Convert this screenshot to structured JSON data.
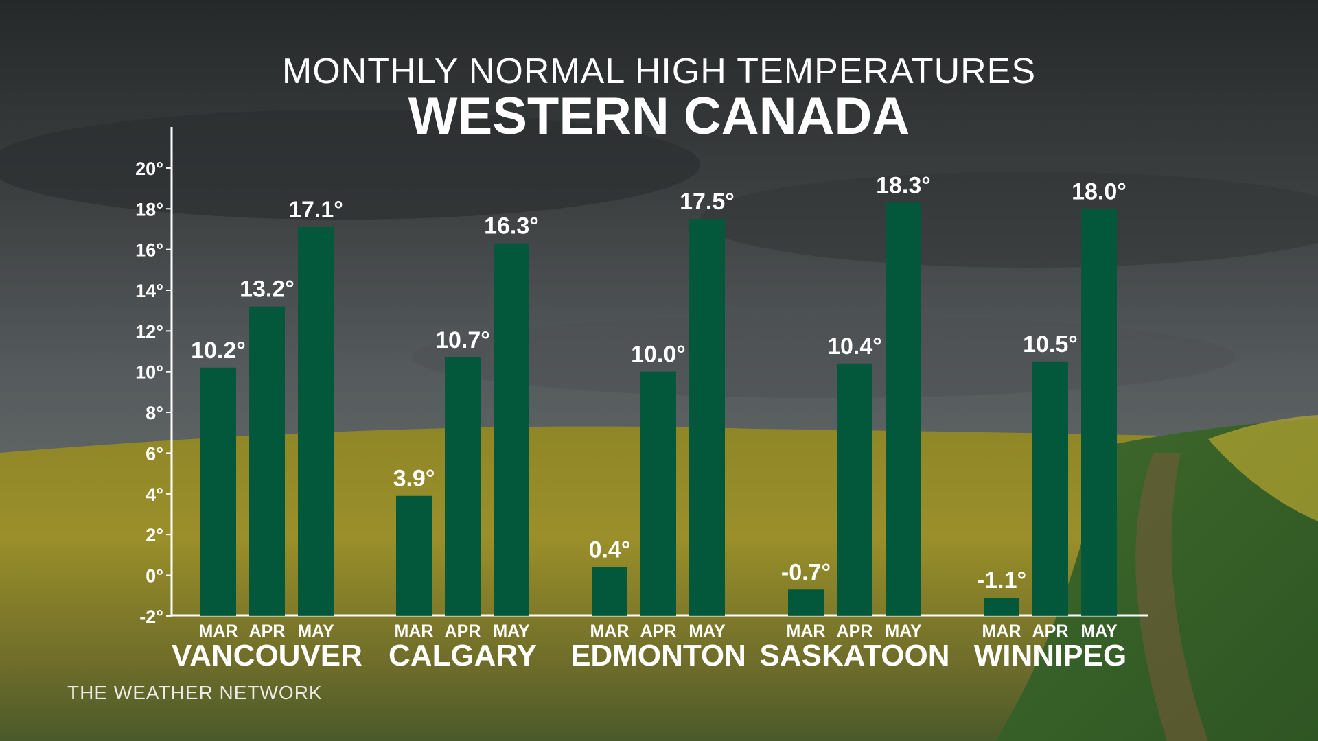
{
  "header": {
    "subtitle": "MONTHLY NORMAL HIGH TEMPERATURES",
    "title": "WESTERN CANADA"
  },
  "brand": {
    "text": "THE WEATHER NETWORK"
  },
  "colors": {
    "bar": "#03573a",
    "axis": "#ffffff",
    "text": "#ffffff"
  },
  "chart_data": {
    "type": "bar",
    "title": "WESTERN CANADA",
    "subtitle": "MONTHLY NORMAL HIGH TEMPERATURES",
    "categories": [
      "VANCOUVER",
      "CALGARY",
      "EDMONTON",
      "SASKATOON",
      "WINNIPEG"
    ],
    "months": [
      "MAR",
      "APR",
      "MAY"
    ],
    "series": [
      {
        "name": "MAR",
        "values": [
          10.2,
          3.9,
          0.4,
          -0.7,
          -1.1
        ]
      },
      {
        "name": "APR",
        "values": [
          13.2,
          10.7,
          10.0,
          10.4,
          10.5
        ]
      },
      {
        "name": "MAY",
        "values": [
          17.1,
          16.3,
          17.5,
          18.3,
          18.0
        ]
      }
    ],
    "value_labels": [
      [
        "10.2°",
        "13.2°",
        "17.1°"
      ],
      [
        "3.9°",
        "10.7°",
        "16.3°"
      ],
      [
        "0.4°",
        "10.0°",
        "17.5°"
      ],
      [
        "-0.7°",
        "10.4°",
        "18.3°"
      ],
      [
        "-1.1°",
        "10.5°",
        "18.0°"
      ]
    ],
    "y_ticks": [
      -2,
      0,
      2,
      4,
      6,
      8,
      10,
      12,
      14,
      16,
      18,
      20
    ],
    "y_tick_labels": [
      "-2°",
      "0°",
      "2°",
      "4°",
      "6°",
      "8°",
      "10°",
      "12°",
      "14°",
      "16°",
      "18°",
      "20°"
    ],
    "ylim": [
      -2,
      22
    ],
    "xlabel": "",
    "ylabel": "",
    "grid": false,
    "legend": "none"
  }
}
